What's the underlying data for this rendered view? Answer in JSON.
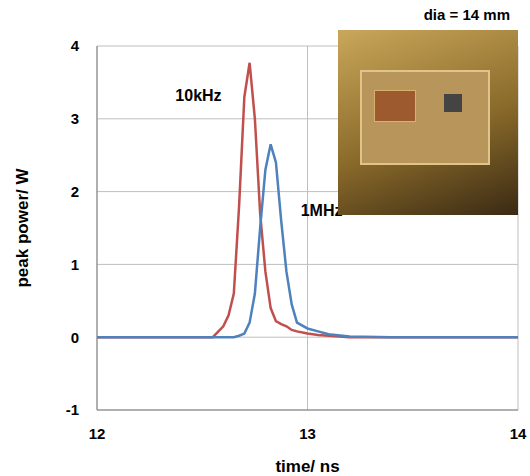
{
  "chart_data": {
    "type": "line",
    "x": [
      12,
      12.2,
      12.4,
      12.5,
      12.55,
      12.6,
      12.625,
      12.65,
      12.675,
      12.7,
      12.725,
      12.75,
      12.775,
      12.8,
      12.825,
      12.85,
      12.875,
      12.9,
      12.925,
      12.95,
      13,
      13.05,
      13.1,
      13.2,
      13.4,
      13.6,
      13.8,
      14
    ],
    "series": [
      {
        "name": "10kHz",
        "color": "#c0504d",
        "values": [
          0,
          0,
          0,
          0,
          0,
          0.15,
          0.3,
          0.6,
          1.8,
          3.3,
          3.77,
          3.0,
          1.7,
          0.9,
          0.4,
          0.22,
          0.18,
          0.15,
          0.1,
          0.08,
          0.05,
          0.03,
          0.02,
          0,
          0,
          0,
          0,
          0
        ]
      },
      {
        "name": "1MHz",
        "color": "#4f81bd",
        "values": [
          0,
          0,
          0,
          0,
          0,
          0,
          0,
          0,
          0.02,
          0.05,
          0.2,
          0.6,
          1.5,
          2.3,
          2.65,
          2.4,
          1.6,
          0.9,
          0.45,
          0.2,
          0.12,
          0.08,
          0.04,
          0.01,
          0,
          0,
          0,
          0
        ]
      }
    ],
    "xlabel": "time/ ns",
    "ylabel": "peak power/ W",
    "xlim": [
      12,
      14
    ],
    "xticks": [
      12,
      13,
      14
    ],
    "ylim": [
      -1,
      4
    ],
    "yticks": [
      -1,
      0,
      1,
      2,
      3,
      4
    ],
    "grid": true,
    "annotations": [
      "dia = 14 mm"
    ]
  }
}
